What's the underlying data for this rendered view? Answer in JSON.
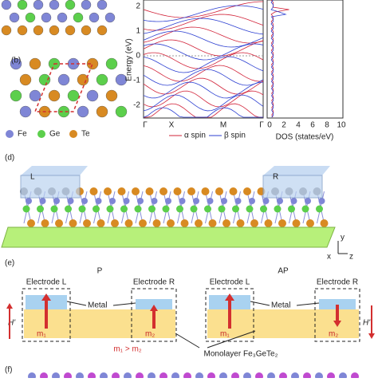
{
  "panel_labels": {
    "b": "(b)",
    "d": "(d)",
    "e": "(e)",
    "f": "(f)"
  },
  "legend": [
    "Fe",
    "Ge",
    "Te"
  ],
  "band": {
    "y_label": "Energy (eV)",
    "yticks": [
      "2",
      "1",
      "0",
      "-1",
      "-2"
    ],
    "xticks": [
      "Γ",
      "X",
      "M",
      "Γ"
    ],
    "spins": [
      "α spin",
      "β spin"
    ]
  },
  "dos": {
    "xticks": [
      "0",
      "2",
      "4",
      "6",
      "8",
      "10"
    ],
    "x_label": "DOS (states/eV)"
  },
  "structure_d": {
    "left": "L",
    "right": "R",
    "axes": [
      "y",
      "x",
      "z"
    ]
  },
  "device": {
    "p": "P",
    "ap": "AP",
    "electrode_l": "Electrode L",
    "electrode_r": "Electrode R",
    "metal": "Metal",
    "m1": "m₁",
    "m2": "m₂",
    "field": "H'",
    "relation": "m₁ > m₂",
    "monolayer": "Monolayer Fe₃GeTe₂"
  }
}
